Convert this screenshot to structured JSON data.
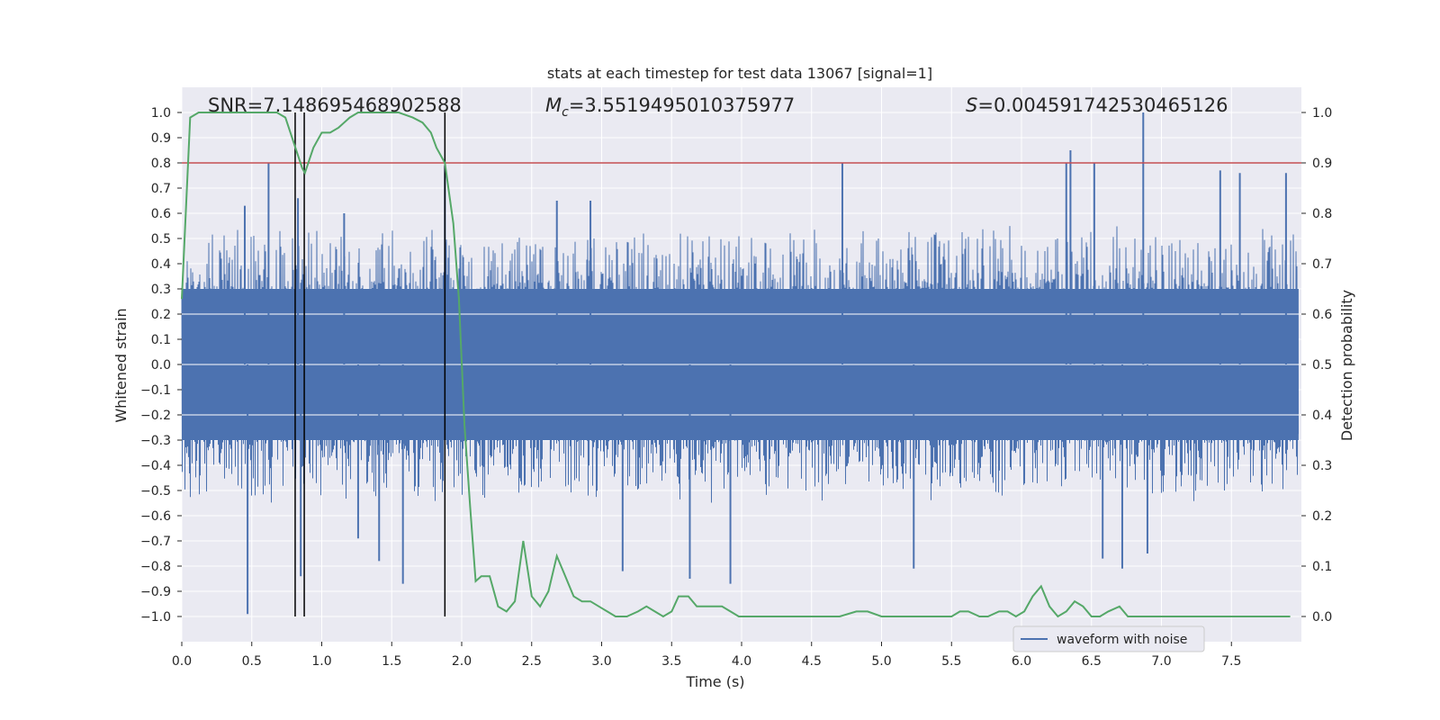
{
  "chart_data": {
    "type": "line",
    "title": "stats at each timestep for test data 13067 [signal=1]",
    "xlabel": "Time (s)",
    "ylabel": "Whitened strain",
    "ylabel_right": "Detection probability",
    "xlim": [
      0.0,
      8.0
    ],
    "ylim": [
      -1.1,
      1.1
    ],
    "ylim_right": [
      -0.05,
      1.05
    ],
    "x_ticks": [
      "0.0",
      "0.5",
      "1.0",
      "1.5",
      "2.0",
      "2.5",
      "3.0",
      "3.5",
      "4.0",
      "4.5",
      "5.0",
      "5.5",
      "6.0",
      "6.5",
      "7.0",
      "7.5"
    ],
    "x_tick_values": [
      0.0,
      0.5,
      1.0,
      1.5,
      2.0,
      2.5,
      3.0,
      3.5,
      4.0,
      4.5,
      5.0,
      5.5,
      6.0,
      6.5,
      7.0,
      7.5
    ],
    "y_ticks": [
      "1.0",
      "0.9",
      "0.8",
      "0.7",
      "0.6",
      "0.5",
      "0.4",
      "0.3",
      "0.2",
      "0.1",
      "0.0",
      "−0.1",
      "−0.2",
      "−0.3",
      "−0.4",
      "−0.5",
      "−0.6",
      "−0.7",
      "−0.8",
      "−0.9",
      "−1.0"
    ],
    "y_tick_values": [
      1.0,
      0.9,
      0.8,
      0.7,
      0.6,
      0.5,
      0.4,
      0.3,
      0.2,
      0.1,
      0.0,
      -0.1,
      -0.2,
      -0.3,
      -0.4,
      -0.5,
      -0.6,
      -0.7,
      -0.8,
      -0.9,
      -1.0
    ],
    "y_ticks_right": [
      "1.0",
      "0.9",
      "0.8",
      "0.7",
      "0.6",
      "0.5",
      "0.4",
      "0.3",
      "0.2",
      "0.1",
      "0.0"
    ],
    "y_tick_values_right": [
      1.0,
      0.9,
      0.8,
      0.7,
      0.6,
      0.5,
      0.4,
      0.3,
      0.2,
      0.1,
      0.0
    ],
    "annotations": {
      "snr": "SNR=7.148695468902588",
      "mc_symbol": "M",
      "mc_sub": "c",
      "mc_value": "=3.5519495010375977",
      "s_symbol": "S",
      "s_value": "=0.004591742530465126"
    },
    "threshold": 0.9,
    "vertical_lines_x": [
      0.81,
      0.875,
      1.88
    ],
    "legend": [
      "waveform with noise"
    ],
    "legend_position": "lower-right",
    "colors": {
      "waveform": "#4c72b0",
      "probability": "#55a868",
      "threshold": "#c44e52",
      "vlines": "#000000",
      "axes_bg": "#eaeaf2",
      "grid": "#ffffff"
    },
    "series": [
      {
        "name": "waveform with noise",
        "kind": "noise-envelope",
        "x_range": [
          0.0,
          7.98
        ],
        "core_amplitude": 0.3,
        "typical_peak": 0.5,
        "spikes_positive": [
          [
            0.45,
            0.63
          ],
          [
            0.62,
            0.8
          ],
          [
            0.83,
            0.66
          ],
          [
            1.16,
            0.6
          ],
          [
            1.88,
            0.79
          ],
          [
            2.68,
            0.65
          ],
          [
            2.92,
            0.65
          ],
          [
            4.72,
            0.8
          ],
          [
            6.35,
            0.85
          ],
          [
            6.32,
            0.8
          ],
          [
            6.52,
            0.8
          ],
          [
            6.87,
            1.0
          ],
          [
            7.42,
            0.77
          ],
          [
            7.56,
            0.76
          ],
          [
            7.89,
            0.76
          ]
        ],
        "spikes_negative": [
          [
            0.47,
            -0.99
          ],
          [
            0.85,
            -0.84
          ],
          [
            1.26,
            -0.69
          ],
          [
            1.41,
            -0.78
          ],
          [
            1.58,
            -0.87
          ],
          [
            3.15,
            -0.82
          ],
          [
            3.63,
            -0.85
          ],
          [
            3.92,
            -0.87
          ],
          [
            5.23,
            -0.81
          ],
          [
            6.58,
            -0.77
          ],
          [
            6.72,
            -0.81
          ],
          [
            6.9,
            -0.75
          ]
        ]
      },
      {
        "name": "detection probability",
        "axis": "right",
        "x": [
          0.0,
          0.06,
          0.12,
          0.3,
          0.45,
          0.6,
          0.68,
          0.74,
          0.8,
          0.86,
          0.88,
          0.94,
          1.0,
          1.06,
          1.12,
          1.2,
          1.26,
          1.32,
          1.45,
          1.55,
          1.65,
          1.72,
          1.78,
          1.82,
          1.88,
          1.94,
          1.98,
          2.02,
          2.06,
          2.1,
          2.14,
          2.2,
          2.26,
          2.32,
          2.38,
          2.44,
          2.5,
          2.56,
          2.62,
          2.68,
          2.74,
          2.8,
          2.86,
          2.92,
          2.98,
          3.04,
          3.1,
          3.18,
          3.26,
          3.32,
          3.38,
          3.44,
          3.5,
          3.55,
          3.62,
          3.68,
          3.74,
          3.8,
          3.86,
          3.92,
          3.98,
          4.04,
          4.1,
          4.3,
          4.5,
          4.6,
          4.7,
          4.82,
          4.9,
          5.0,
          5.2,
          5.5,
          5.56,
          5.62,
          5.7,
          5.76,
          5.84,
          5.9,
          5.96,
          6.02,
          6.08,
          6.14,
          6.2,
          6.26,
          6.32,
          6.38,
          6.44,
          6.5,
          6.56,
          6.62,
          6.7,
          6.76,
          6.82,
          7.0,
          7.2,
          7.4,
          7.5,
          7.6,
          7.7,
          7.8,
          7.92
        ],
        "values": [
          0.63,
          0.99,
          1.0,
          1.0,
          1.0,
          1.0,
          1.0,
          0.99,
          0.94,
          0.89,
          0.88,
          0.93,
          0.96,
          0.96,
          0.97,
          0.99,
          1.0,
          1.0,
          1.0,
          1.0,
          0.99,
          0.98,
          0.96,
          0.93,
          0.9,
          0.78,
          0.63,
          0.38,
          0.22,
          0.07,
          0.08,
          0.08,
          0.02,
          0.01,
          0.03,
          0.15,
          0.04,
          0.02,
          0.05,
          0.12,
          0.08,
          0.04,
          0.03,
          0.03,
          0.02,
          0.01,
          0.0,
          0.0,
          0.01,
          0.02,
          0.01,
          0.0,
          0.01,
          0.04,
          0.04,
          0.02,
          0.02,
          0.02,
          0.02,
          0.01,
          0.0,
          0.0,
          0.0,
          0.0,
          0.0,
          0.0,
          0.0,
          0.01,
          0.01,
          0.0,
          0.0,
          0.0,
          0.01,
          0.01,
          0.0,
          0.0,
          0.01,
          0.01,
          0.0,
          0.01,
          0.04,
          0.06,
          0.02,
          0.0,
          0.01,
          0.03,
          0.02,
          0.0,
          0.0,
          0.01,
          0.02,
          0.0,
          0.0,
          0.0,
          0.0,
          0.0,
          0.0,
          0.0,
          0.0,
          0.0,
          0.0
        ]
      }
    ]
  }
}
